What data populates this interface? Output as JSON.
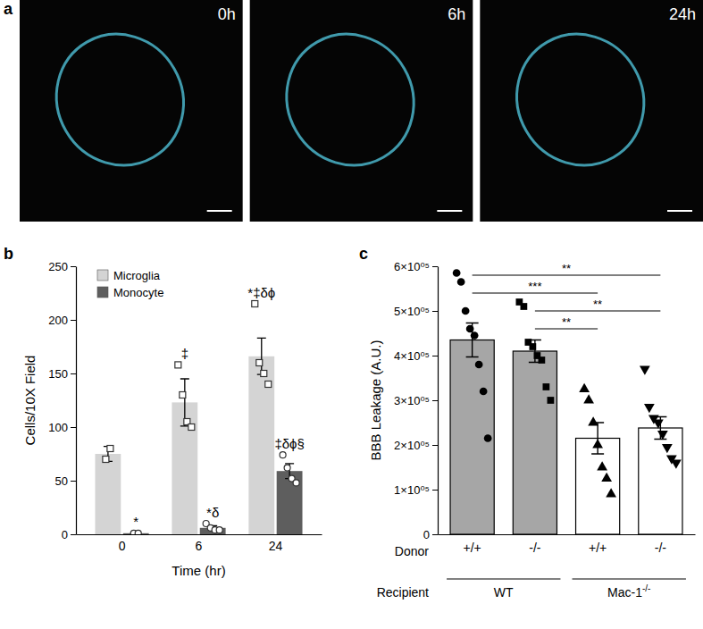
{
  "chart_data": [
    {
      "type": "image",
      "title": "a",
      "categories": [
        "0h",
        "6h",
        "24h"
      ]
    },
    {
      "type": "bar",
      "title": "b",
      "xlabel": "Time (hr)",
      "ylabel": "Cells/10X Field",
      "categories": [
        "0",
        "6",
        "24"
      ],
      "ylim": [
        0,
        250
      ],
      "yticks": [
        0,
        50,
        100,
        150,
        200,
        250
      ],
      "legend": "top-left",
      "grid": false,
      "series": [
        {
          "name": "Microglia",
          "color": "#d4d4d4",
          "marker": "square",
          "values": [
            75,
            123,
            166
          ],
          "errors": [
            7,
            22,
            17
          ],
          "points": [
            [
              70,
              80
            ],
            [
              158,
              130,
              105,
              100
            ],
            [
              215,
              160,
              150,
              140
            ]
          ],
          "annotations": [
            null,
            "‡",
            "*‡δϕ"
          ]
        },
        {
          "name": "Monocyte",
          "color": "#5e5e5e",
          "marker": "circle",
          "values": [
            1,
            6,
            59
          ],
          "errors": [
            0.5,
            2,
            7
          ],
          "points": [
            [
              1,
              1
            ],
            [
              10,
              6,
              4,
              4
            ],
            [
              74,
              62,
              52,
              48
            ]
          ],
          "annotations": [
            "*",
            "*δ",
            "‡δϕ§"
          ]
        }
      ]
    },
    {
      "type": "bar",
      "title": "c",
      "ylabel": "BBB Leakage (A.U.)",
      "categories": [
        "+/+",
        "-/-",
        "+/+",
        "-/-"
      ],
      "row_labels": [
        "Donor",
        "Recipient"
      ],
      "groups": [
        {
          "label": "WT",
          "size": 2
        },
        {
          "label": "Mac-1",
          "superscript": "-/-",
          "size": 2
        }
      ],
      "values": [
        435000,
        410000,
        215000,
        238000
      ],
      "errors": [
        38000,
        25000,
        35000,
        25000
      ],
      "colors": [
        "#a6a6a6",
        "#a6a6a6",
        "#ffffff",
        "#ffffff"
      ],
      "marker": [
        "circle",
        "square",
        "triangle",
        "triangle-down"
      ],
      "points": [
        [
          585000,
          565000,
          500000,
          460000,
          445000,
          380000,
          320000,
          215000
        ],
        [
          520000,
          510000,
          430000,
          420000,
          400000,
          390000,
          330000,
          300000
        ],
        [
          325000,
          300000,
          250000,
          200000,
          150000,
          125000,
          90000
        ],
        [
          370000,
          285000,
          260000,
          250000,
          225000,
          195000,
          170000,
          160000
        ]
      ],
      "ylim": [
        0,
        600000
      ],
      "yticks": [
        0,
        {
          "value": 100000,
          "label": "1×10⁰⁵"
        },
        {
          "value": 200000,
          "label": "2×10⁰⁵"
        },
        {
          "value": 300000,
          "label": "3×10⁰⁵"
        },
        {
          "value": 400000,
          "label": "4×10⁰⁵"
        },
        {
          "value": 500000,
          "label": "5×10⁰⁵"
        },
        {
          "value": 600000,
          "label": "6×10⁰⁵"
        }
      ],
      "comparisons": [
        {
          "from": 0,
          "to": 3,
          "y": 580000,
          "label": "**"
        },
        {
          "from": 0,
          "to": 2,
          "y": 540000,
          "label": "***"
        },
        {
          "from": 1,
          "to": 3,
          "y": 500000,
          "label": "**"
        },
        {
          "from": 1,
          "to": 2,
          "y": 460000,
          "label": "**"
        }
      ],
      "grid": false
    }
  ]
}
